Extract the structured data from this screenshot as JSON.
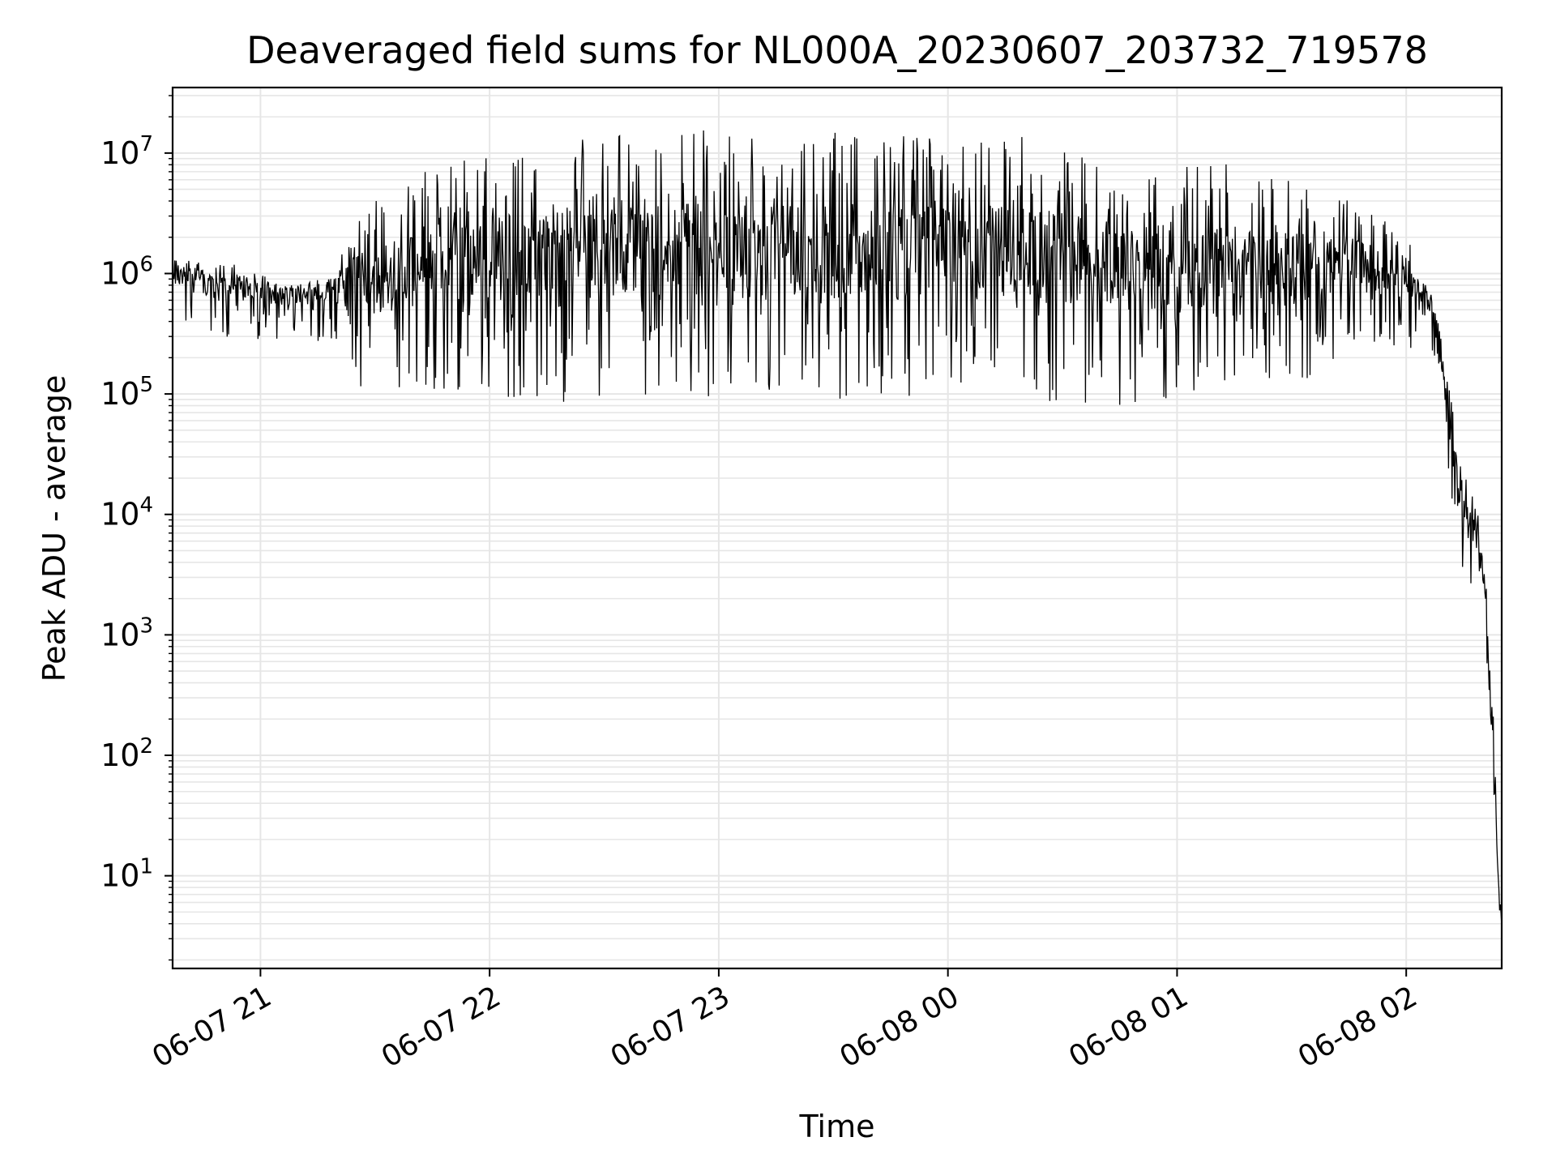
{
  "chart_data": {
    "type": "line",
    "title": "Deaveraged field sums for NL000A_20230607_203732_719578",
    "xlabel": "Time",
    "ylabel": "Peak ADU - average",
    "yscale": "log",
    "ylim": [
      1.7,
      35000000
    ],
    "xlim": [
      "2023-06-07 20:37",
      "2023-06-08 02:25"
    ],
    "x_ticks": [
      {
        "value": "2023-06-07 21:00",
        "label": "06-07 21"
      },
      {
        "value": "2023-06-07 22:00",
        "label": "06-07 22"
      },
      {
        "value": "2023-06-07 23:00",
        "label": "06-07 23"
      },
      {
        "value": "2023-06-08 00:00",
        "label": "06-08 00"
      },
      {
        "value": "2023-06-08 01:00",
        "label": "06-08 01"
      },
      {
        "value": "2023-06-08 02:00",
        "label": "06-08 02"
      }
    ],
    "y_ticks": [
      {
        "value": 10,
        "base": "10",
        "exp": "1"
      },
      {
        "value": 100,
        "base": "10",
        "exp": "2"
      },
      {
        "value": 1000,
        "base": "10",
        "exp": "3"
      },
      {
        "value": 10000,
        "base": "10",
        "exp": "4"
      },
      {
        "value": 100000,
        "base": "10",
        "exp": "5"
      },
      {
        "value": 1000000,
        "base": "10",
        "exp": "6"
      },
      {
        "value": 10000000,
        "base": "10",
        "exp": "7"
      }
    ],
    "grid": true,
    "grid_minor": true,
    "line_color": "#000000",
    "grid_color": "#e6e6e6",
    "series": [
      {
        "x": [
          "2023-06-07 20:37",
          "2023-06-07 20:50",
          "2023-06-07 21:00",
          "2023-06-07 21:10",
          "2023-06-07 21:20",
          "2023-06-07 21:25",
          "2023-06-07 21:30",
          "2023-06-07 21:40",
          "2023-06-07 21:50",
          "2023-06-07 22:00",
          "2023-06-07 22:15",
          "2023-06-07 22:30",
          "2023-06-07 22:45",
          "2023-06-07 23:00",
          "2023-06-07 23:15",
          "2023-06-07 23:30",
          "2023-06-07 23:45",
          "2023-06-08 00:00",
          "2023-06-08 00:15",
          "2023-06-08 00:30",
          "2023-06-08 00:45",
          "2023-06-08 01:00",
          "2023-06-08 01:15",
          "2023-06-08 01:30",
          "2023-06-08 01:45",
          "2023-06-08 02:00",
          "2023-06-08 02:05",
          "2023-06-08 02:08",
          "2023-06-08 02:10",
          "2023-06-08 02:13",
          "2023-06-08 02:15",
          "2023-06-08 02:18",
          "2023-06-08 02:20",
          "2023-06-08 02:22",
          "2023-06-08 02:23",
          "2023-06-08 02:24",
          "2023-06-08 02:25"
        ],
        "upper": [
          1300000,
          1300000,
          1000000,
          900000,
          1100000,
          3500000,
          4000000,
          6500000,
          9000000,
          11000000,
          12000000,
          14000000,
          15000000,
          16000000,
          15000000,
          15000000,
          14000000,
          14000000,
          15000000,
          13000000,
          11000000,
          9000000,
          8000000,
          6500000,
          4000000,
          2500000,
          900000,
          500000,
          200000,
          50000,
          30000,
          12000,
          12000,
          600,
          200,
          10,
          4
        ],
        "lower": [
          400000,
          300000,
          280000,
          270000,
          250000,
          100000,
          110000,
          90000,
          100000,
          100000,
          80000,
          90000,
          95000,
          90000,
          80000,
          85000,
          90000,
          90000,
          85000,
          80000,
          70000,
          85000,
          90000,
          95000,
          250000,
          200000,
          300000,
          150000,
          40000,
          6000,
          2000,
          3000,
          800,
          100,
          20,
          5,
          3.8
        ]
      }
    ]
  }
}
